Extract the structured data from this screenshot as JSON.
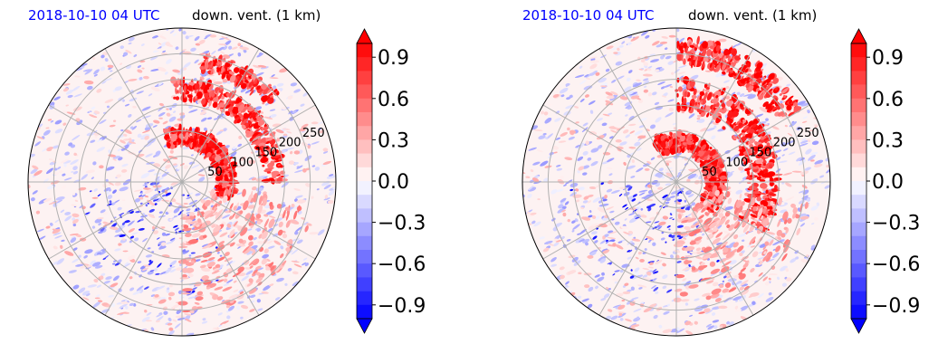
{
  "colors": {
    "time_label": "#0000ff",
    "max": "#ff0000",
    "zero": "#ffffff",
    "min": "#0000ff",
    "grid": "#b0b0b0"
  },
  "chart_data": [
    {
      "type": "heatmap",
      "projection": "polar",
      "title_left": "2018-10-10 04 UTC",
      "title_right": "down. vent. (1 km)",
      "radial_ticks": [
        "50",
        "100",
        "150",
        "200",
        "250"
      ],
      "radial_tick_values": [
        50,
        100,
        150,
        200,
        250
      ],
      "rmax": 300,
      "grid": true,
      "colormap": "bwr",
      "vmin": -1.0,
      "vmax": 1.0,
      "colorbar_ticks": [
        "0.9",
        "0.6",
        "0.3",
        "0.0",
        "−0.3",
        "−0.6",
        "−0.9"
      ],
      "colorbar_tick_values": [
        0.9,
        0.6,
        0.3,
        0.0,
        -0.3,
        -0.6,
        -0.9
      ],
      "colorbar_extend": "both",
      "field_summary": "positive values (red) concentrated north to east of center between 50 and 250; weak negative values (blue) scattered west and south"
    },
    {
      "type": "heatmap",
      "projection": "polar",
      "title_left": "2018-10-10 04 UTC",
      "title_right": "down. vent. (1 km)",
      "radial_ticks": [
        "50",
        "100",
        "150",
        "200",
        "250"
      ],
      "radial_tick_values": [
        50,
        100,
        150,
        200,
        250
      ],
      "rmax": 300,
      "grid": true,
      "colormap": "bwr",
      "vmin": -1.0,
      "vmax": 1.0,
      "colorbar_ticks": [
        "0.9",
        "0.6",
        "0.3",
        "0.0",
        "−0.3",
        "−0.6",
        "−0.9"
      ],
      "colorbar_tick_values": [
        0.9,
        0.6,
        0.3,
        0.0,
        -0.3,
        -0.6,
        -0.9
      ],
      "colorbar_extend": "both",
      "field_summary": "strong positive values (red) in arcs north and east of center with outer bands to the northeast; negative values (blue) south-west of center"
    }
  ]
}
